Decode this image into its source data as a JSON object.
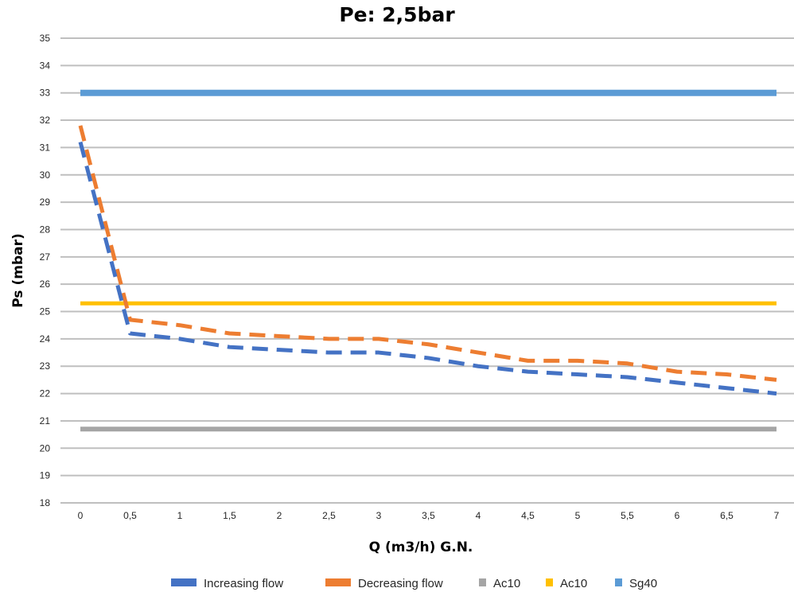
{
  "chart_data": {
    "type": "line",
    "title": "Pe: 2,5bar",
    "xlabel": "Q (m3/h) G.N.",
    "ylabel": "Ps (mbar)",
    "ylim": [
      18,
      35
    ],
    "yticks": [
      "18",
      "19",
      "20",
      "21",
      "22",
      "23",
      "24",
      "25",
      "26",
      "27",
      "28",
      "29",
      "30",
      "31",
      "32",
      "33",
      "34",
      "35"
    ],
    "categories": [
      "0",
      "0,5",
      "1",
      "1,5",
      "2",
      "2,5",
      "3",
      "3,5",
      "4",
      "4,5",
      "5",
      "5,5",
      "6",
      "6,5",
      "7"
    ],
    "grid": true,
    "legend_position": "bottom",
    "series": [
      {
        "name": "Increasing flow",
        "color": "#4472C4",
        "style": "dashed",
        "values": [
          31.2,
          24.2,
          24.0,
          23.7,
          23.6,
          23.5,
          23.5,
          23.3,
          23.0,
          22.8,
          22.7,
          22.6,
          22.4,
          22.2,
          22.0
        ]
      },
      {
        "name": "Decreasing  flow",
        "color": "#ED7D31",
        "style": "dashed",
        "values": [
          31.8,
          24.7,
          24.5,
          24.2,
          24.1,
          24.0,
          24.0,
          23.8,
          23.5,
          23.2,
          23.2,
          23.1,
          22.8,
          22.7,
          22.5
        ]
      },
      {
        "name": "Ac10",
        "color": "#A5A5A5",
        "style": "solid",
        "values": [
          20.7,
          20.7,
          20.7,
          20.7,
          20.7,
          20.7,
          20.7,
          20.7,
          20.7,
          20.7,
          20.7,
          20.7,
          20.7,
          20.7,
          20.7
        ]
      },
      {
        "name": "Ac10",
        "color": "#FFC000",
        "style": "solid",
        "values": [
          25.3,
          25.3,
          25.3,
          25.3,
          25.3,
          25.3,
          25.3,
          25.3,
          25.3,
          25.3,
          25.3,
          25.3,
          25.3,
          25.3,
          25.3
        ]
      },
      {
        "name": "Sg40",
        "color": "#5B9BD5",
        "style": "solid",
        "values": [
          33.0,
          33.0,
          33.0,
          33.0,
          33.0,
          33.0,
          33.0,
          33.0,
          33.0,
          33.0,
          33.0,
          33.0,
          33.0,
          33.0,
          33.0
        ]
      }
    ]
  }
}
